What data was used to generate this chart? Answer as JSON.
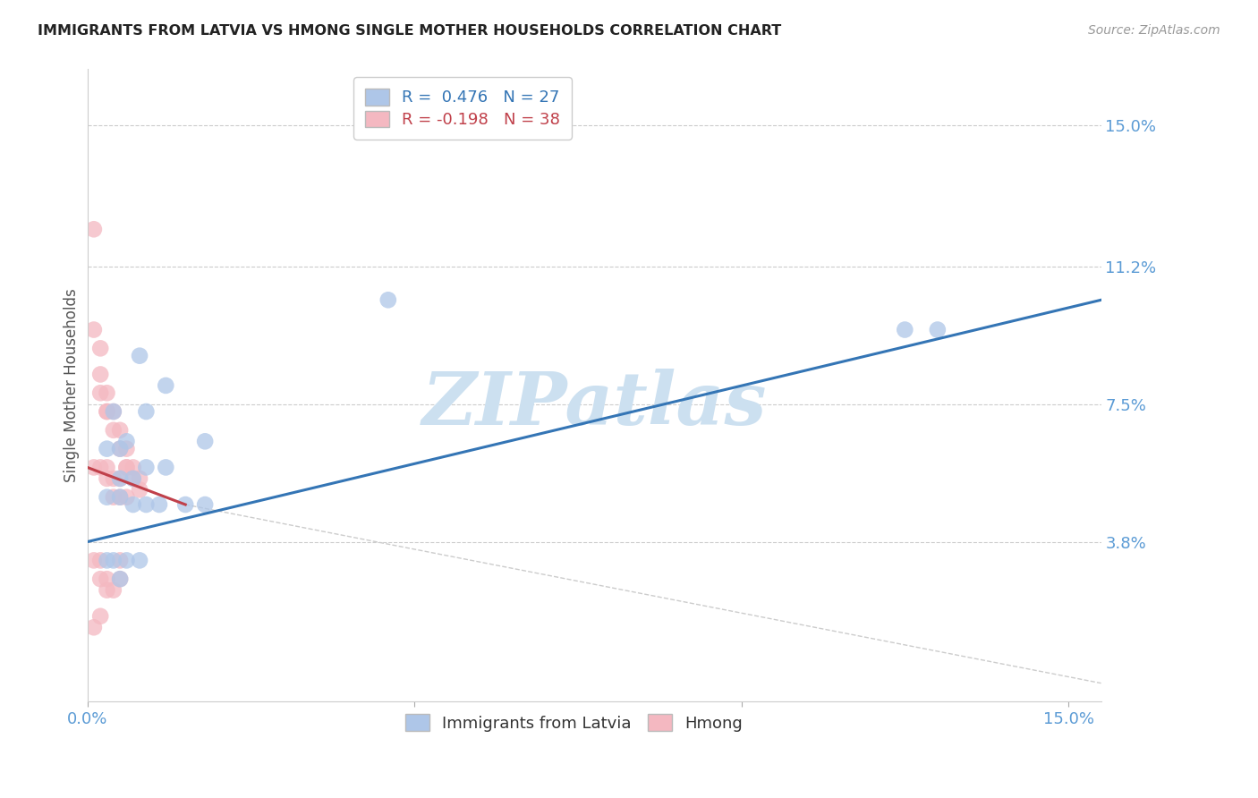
{
  "title": "IMMIGRANTS FROM LATVIA VS HMONG SINGLE MOTHER HOUSEHOLDS CORRELATION CHART",
  "source": "Source: ZipAtlas.com",
  "ylabel": "Single Mother Households",
  "ytick_labels": [
    "15.0%",
    "11.2%",
    "7.5%",
    "3.8%"
  ],
  "ytick_values": [
    0.15,
    0.112,
    0.075,
    0.038
  ],
  "xtick_labels": [
    "0.0%",
    "",
    "",
    "15.0%"
  ],
  "xtick_values": [
    0.0,
    0.05,
    0.1,
    0.15
  ],
  "xlim": [
    0.0,
    0.155
  ],
  "ylim": [
    -0.005,
    0.165
  ],
  "legend1_label": "R =  0.476   N = 27",
  "legend2_label": "R = -0.198   N = 38",
  "watermark": "ZIPatlas",
  "bottom_legend1": "Immigrants from Latvia",
  "bottom_legend2": "Hmong",
  "blue_scatter_x": [
    0.008,
    0.012,
    0.004,
    0.009,
    0.006,
    0.018,
    0.003,
    0.005,
    0.009,
    0.012,
    0.005,
    0.007,
    0.003,
    0.005,
    0.007,
    0.009,
    0.011,
    0.015,
    0.018,
    0.003,
    0.004,
    0.006,
    0.008,
    0.046,
    0.125,
    0.005,
    0.13
  ],
  "blue_scatter_y": [
    0.088,
    0.08,
    0.073,
    0.073,
    0.065,
    0.065,
    0.063,
    0.063,
    0.058,
    0.058,
    0.055,
    0.055,
    0.05,
    0.05,
    0.048,
    0.048,
    0.048,
    0.048,
    0.048,
    0.033,
    0.033,
    0.033,
    0.033,
    0.103,
    0.095,
    0.028,
    0.095
  ],
  "pink_scatter_x": [
    0.001,
    0.001,
    0.002,
    0.002,
    0.002,
    0.003,
    0.003,
    0.003,
    0.004,
    0.004,
    0.005,
    0.005,
    0.006,
    0.006,
    0.007,
    0.007,
    0.008,
    0.008,
    0.001,
    0.002,
    0.003,
    0.003,
    0.004,
    0.004,
    0.005,
    0.005,
    0.006,
    0.006,
    0.001,
    0.002,
    0.002,
    0.003,
    0.003,
    0.004,
    0.005,
    0.005,
    0.001,
    0.002
  ],
  "pink_scatter_y": [
    0.122,
    0.095,
    0.09,
    0.083,
    0.078,
    0.078,
    0.073,
    0.073,
    0.073,
    0.068,
    0.068,
    0.063,
    0.063,
    0.058,
    0.058,
    0.055,
    0.055,
    0.052,
    0.058,
    0.058,
    0.058,
    0.055,
    0.055,
    0.05,
    0.05,
    0.055,
    0.05,
    0.058,
    0.033,
    0.033,
    0.028,
    0.028,
    0.025,
    0.025,
    0.028,
    0.033,
    0.015,
    0.018
  ],
  "blue_line_x": [
    0.0,
    0.155
  ],
  "blue_line_y": [
    0.038,
    0.103
  ],
  "pink_solid_line_x": [
    0.0,
    0.015
  ],
  "pink_solid_line_y": [
    0.058,
    0.048
  ],
  "pink_dash_line_x": [
    0.015,
    0.155
  ],
  "pink_dash_line_y": [
    0.048,
    0.0
  ],
  "title_color": "#222222",
  "tick_color": "#5b9bd5",
  "grid_color": "#cccccc",
  "blue_scatter_color": "#aec6e8",
  "pink_scatter_color": "#f4b8c1",
  "blue_line_color": "#3475b5",
  "pink_line_color": "#c0404a",
  "watermark_color": "#cce0f0",
  "legend_edge_color": "#cccccc"
}
